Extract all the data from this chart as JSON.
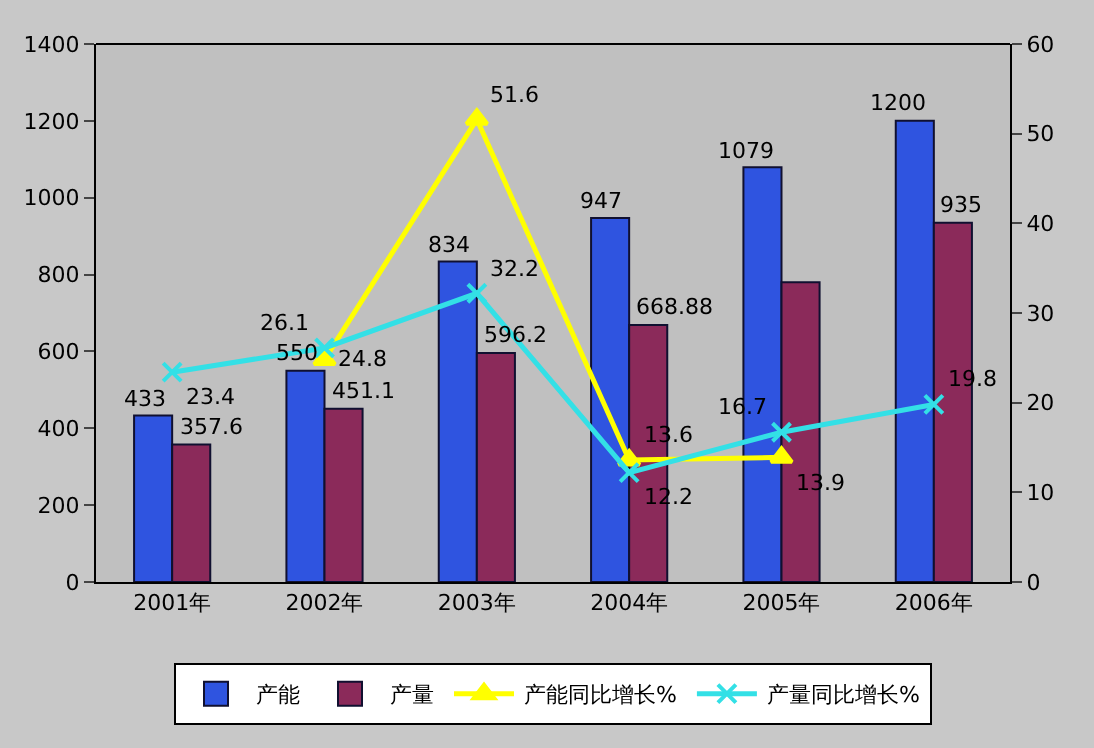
{
  "chart_data": {
    "type": "bar",
    "categories": [
      "2001年",
      "2002年",
      "2003年",
      "2004年",
      "2005年",
      "2006年"
    ],
    "series": [
      {
        "name": "产能",
        "color": "#2f54e0",
        "values": [
          433,
          550,
          834,
          947,
          1079,
          1200
        ],
        "value_labels": [
          "433",
          "550",
          "834",
          "947",
          "1079",
          "1200"
        ]
      },
      {
        "name": "产量",
        "color": "#8b2a5a",
        "values": [
          357.6,
          451.1,
          596.2,
          668.88,
          780,
          935
        ],
        "value_labels": [
          "357.6",
          "451.1",
          "596.2",
          "668.88",
          null,
          "935"
        ]
      },
      {
        "name": "产能同比增长%",
        "type": "line",
        "axis": "y2",
        "color": "#ffff00",
        "marker": "triangle",
        "values": [
          null,
          24.8,
          51.6,
          13.6,
          13.9,
          null
        ],
        "value_labels": [
          null,
          "24.8",
          "51.6",
          "13.6",
          "13.9",
          null
        ]
      },
      {
        "name": "产量同比增长%",
        "type": "line",
        "axis": "y2",
        "color": "#33e0e6",
        "marker": "cross",
        "values": [
          23.4,
          26.1,
          32.2,
          12.2,
          16.7,
          19.8
        ],
        "value_labels": [
          "23.4",
          "26.1",
          "32.2",
          "12.2",
          "16.7",
          "19.8"
        ]
      }
    ],
    "ylim": [
      0,
      1400
    ],
    "yticks": [
      0,
      200,
      400,
      600,
      800,
      1000,
      1200,
      1400
    ],
    "y2lim": [
      0,
      60
    ],
    "y2ticks": [
      0,
      10,
      20,
      30,
      40,
      50,
      60
    ],
    "grid": false,
    "legend": "bottom"
  }
}
